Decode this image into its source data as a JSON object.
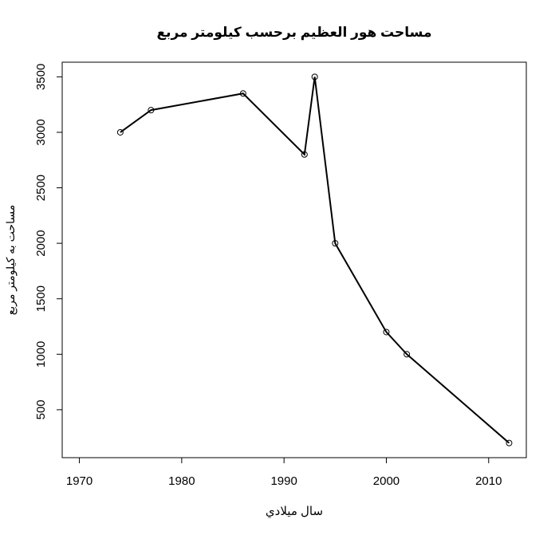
{
  "chart_data": {
    "type": "line",
    "title": "مساحت هور العظيم برحسب كيلومتر مربع",
    "x_label": "سال ميلادي",
    "y_label": "مساحت به كيلومتر مربع",
    "x": [
      1974,
      1977,
      1986,
      1992,
      1993,
      1995,
      2000,
      2002,
      2012
    ],
    "values": [
      3000,
      3200,
      3350,
      2800,
      3500,
      2000,
      1200,
      1000,
      200
    ],
    "color": "#000000",
    "xlim": [
      1968.32,
      2013.68
    ],
    "xticks": [
      1970,
      1980,
      1990,
      2000,
      2010
    ],
    "ylim": [
      68,
      3632
    ],
    "yticks": [
      500,
      1000,
      1500,
      2000,
      2500,
      3000,
      3500
    ]
  }
}
